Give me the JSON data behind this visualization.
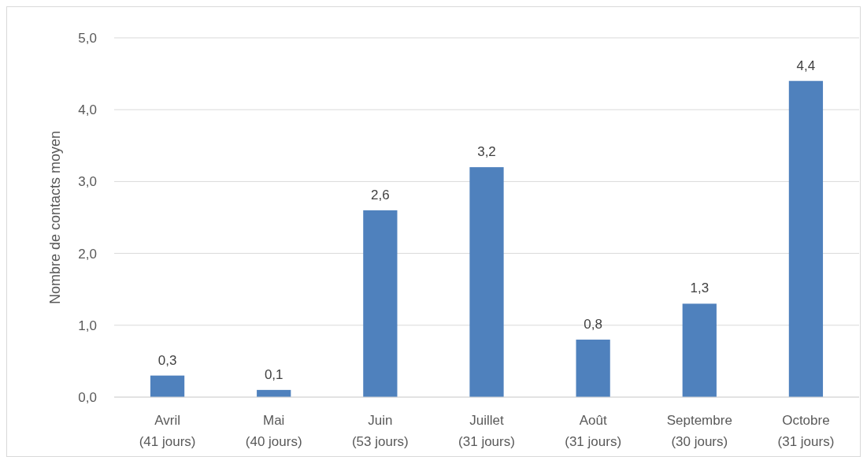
{
  "chart_data": {
    "type": "bar",
    "ylabel": "Nombre de contacts moyen",
    "categories": [
      "Avril\n(41 jours)",
      "Mai\n(40 jours)",
      "Juin\n(53 jours)",
      "Juillet\n(31 jours)",
      "Août\n(31 jours)",
      "Septembre\n(30 jours)",
      "Octobre\n(31 jours)"
    ],
    "values": [
      0.3,
      0.1,
      2.6,
      3.2,
      0.8,
      1.3,
      4.4
    ],
    "value_labels": [
      "0,3",
      "0,1",
      "2,6",
      "3,2",
      "0,8",
      "1,3",
      "4,4"
    ],
    "color": "#4f81bd",
    "ylim": [
      0,
      5
    ],
    "yticks": [
      {
        "value": 0,
        "label": "0,0"
      },
      {
        "value": 1,
        "label": "1,0"
      },
      {
        "value": 2,
        "label": "2,0"
      },
      {
        "value": 3,
        "label": "3,0"
      },
      {
        "value": 4,
        "label": "4,0"
      },
      {
        "value": 5,
        "label": "5,0"
      }
    ],
    "grid": "y"
  }
}
